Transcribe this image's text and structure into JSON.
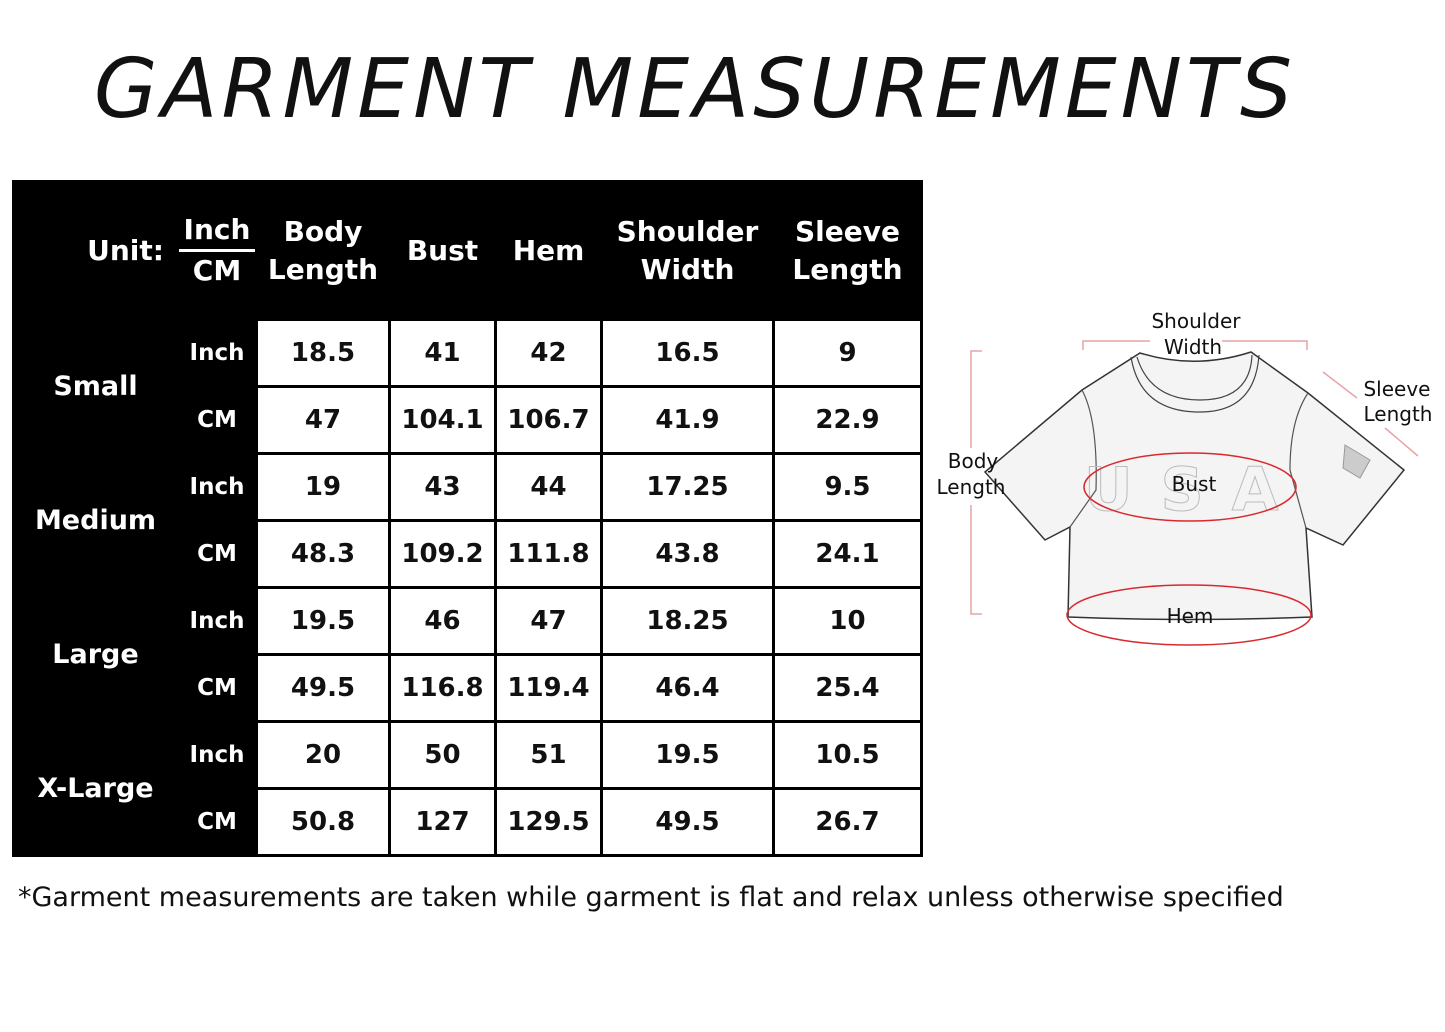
{
  "title": "GARMENT MEASUREMENTS",
  "table": {
    "unit_label": "Unit:",
    "unit_inch": "Inch",
    "unit_cm": "CM",
    "columns": [
      "Body Length",
      "Bust",
      "Hem",
      "Shoulder Width",
      "Sleeve Length"
    ],
    "sizes": [
      {
        "name": "Small",
        "inch": [
          "18.5",
          "41",
          "42",
          "16.5",
          "9"
        ],
        "cm": [
          "47",
          "104.1",
          "106.7",
          "41.9",
          "22.9"
        ]
      },
      {
        "name": "Medium",
        "inch": [
          "19",
          "43",
          "44",
          "17.25",
          "9.5"
        ],
        "cm": [
          "48.3",
          "109.2",
          "111.8",
          "43.8",
          "24.1"
        ]
      },
      {
        "name": "Large",
        "inch": [
          "19.5",
          "46",
          "47",
          "18.25",
          "10"
        ],
        "cm": [
          "49.5",
          "116.8",
          "119.4",
          "46.4",
          "25.4"
        ]
      },
      {
        "name": "X-Large",
        "inch": [
          "20",
          "50",
          "51",
          "19.5",
          "10.5"
        ],
        "cm": [
          "50.8",
          "127",
          "129.5",
          "49.5",
          "26.7"
        ]
      }
    ]
  },
  "diagram": {
    "shoulder_1": "Shoulder",
    "shoulder_2": "Width",
    "sleeve_1": "Sleeve",
    "sleeve_2": "Length",
    "body_1": "Body",
    "body_2": "Length",
    "bust": "Bust",
    "hem": "Hem",
    "print": "USA",
    "accent": "#d9292e"
  },
  "note": "*Garment measurements are taken while garment is flat and relax unless otherwise specified"
}
